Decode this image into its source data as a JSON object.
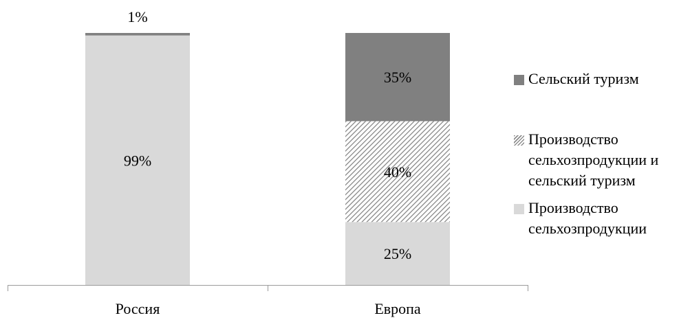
{
  "chart_data": {
    "type": "bar",
    "stacked": true,
    "percent": true,
    "categories": [
      "Россия",
      "Европа"
    ],
    "series": [
      {
        "name": "Производство сельхозпродукции",
        "values": [
          99,
          25
        ],
        "color": "#d9d9d9",
        "pattern": "solid"
      },
      {
        "name": "Производство сельхозпродукции и сельский туризм",
        "values": [
          0,
          40
        ],
        "color": "#7f7f7f",
        "pattern": "diagonal-hatch"
      },
      {
        "name": "Сельский туризм",
        "values": [
          1,
          35
        ],
        "color": "#808080",
        "pattern": "solid"
      }
    ],
    "data_labels": [
      [
        "99%",
        "25%"
      ],
      [
        "",
        "40%"
      ],
      [
        "1%",
        "35%"
      ]
    ],
    "ylim": [
      0,
      100
    ],
    "grid": false,
    "legend": "right"
  },
  "legend": {
    "items": [
      {
        "label": "Сельский туризм",
        "swatch": "solid-dark"
      },
      {
        "label": "Производство сельхозпродукции и сельский туризм",
        "swatch": "hatch"
      },
      {
        "label": "Производство сельхозпродукции",
        "swatch": "solid-light"
      }
    ]
  }
}
